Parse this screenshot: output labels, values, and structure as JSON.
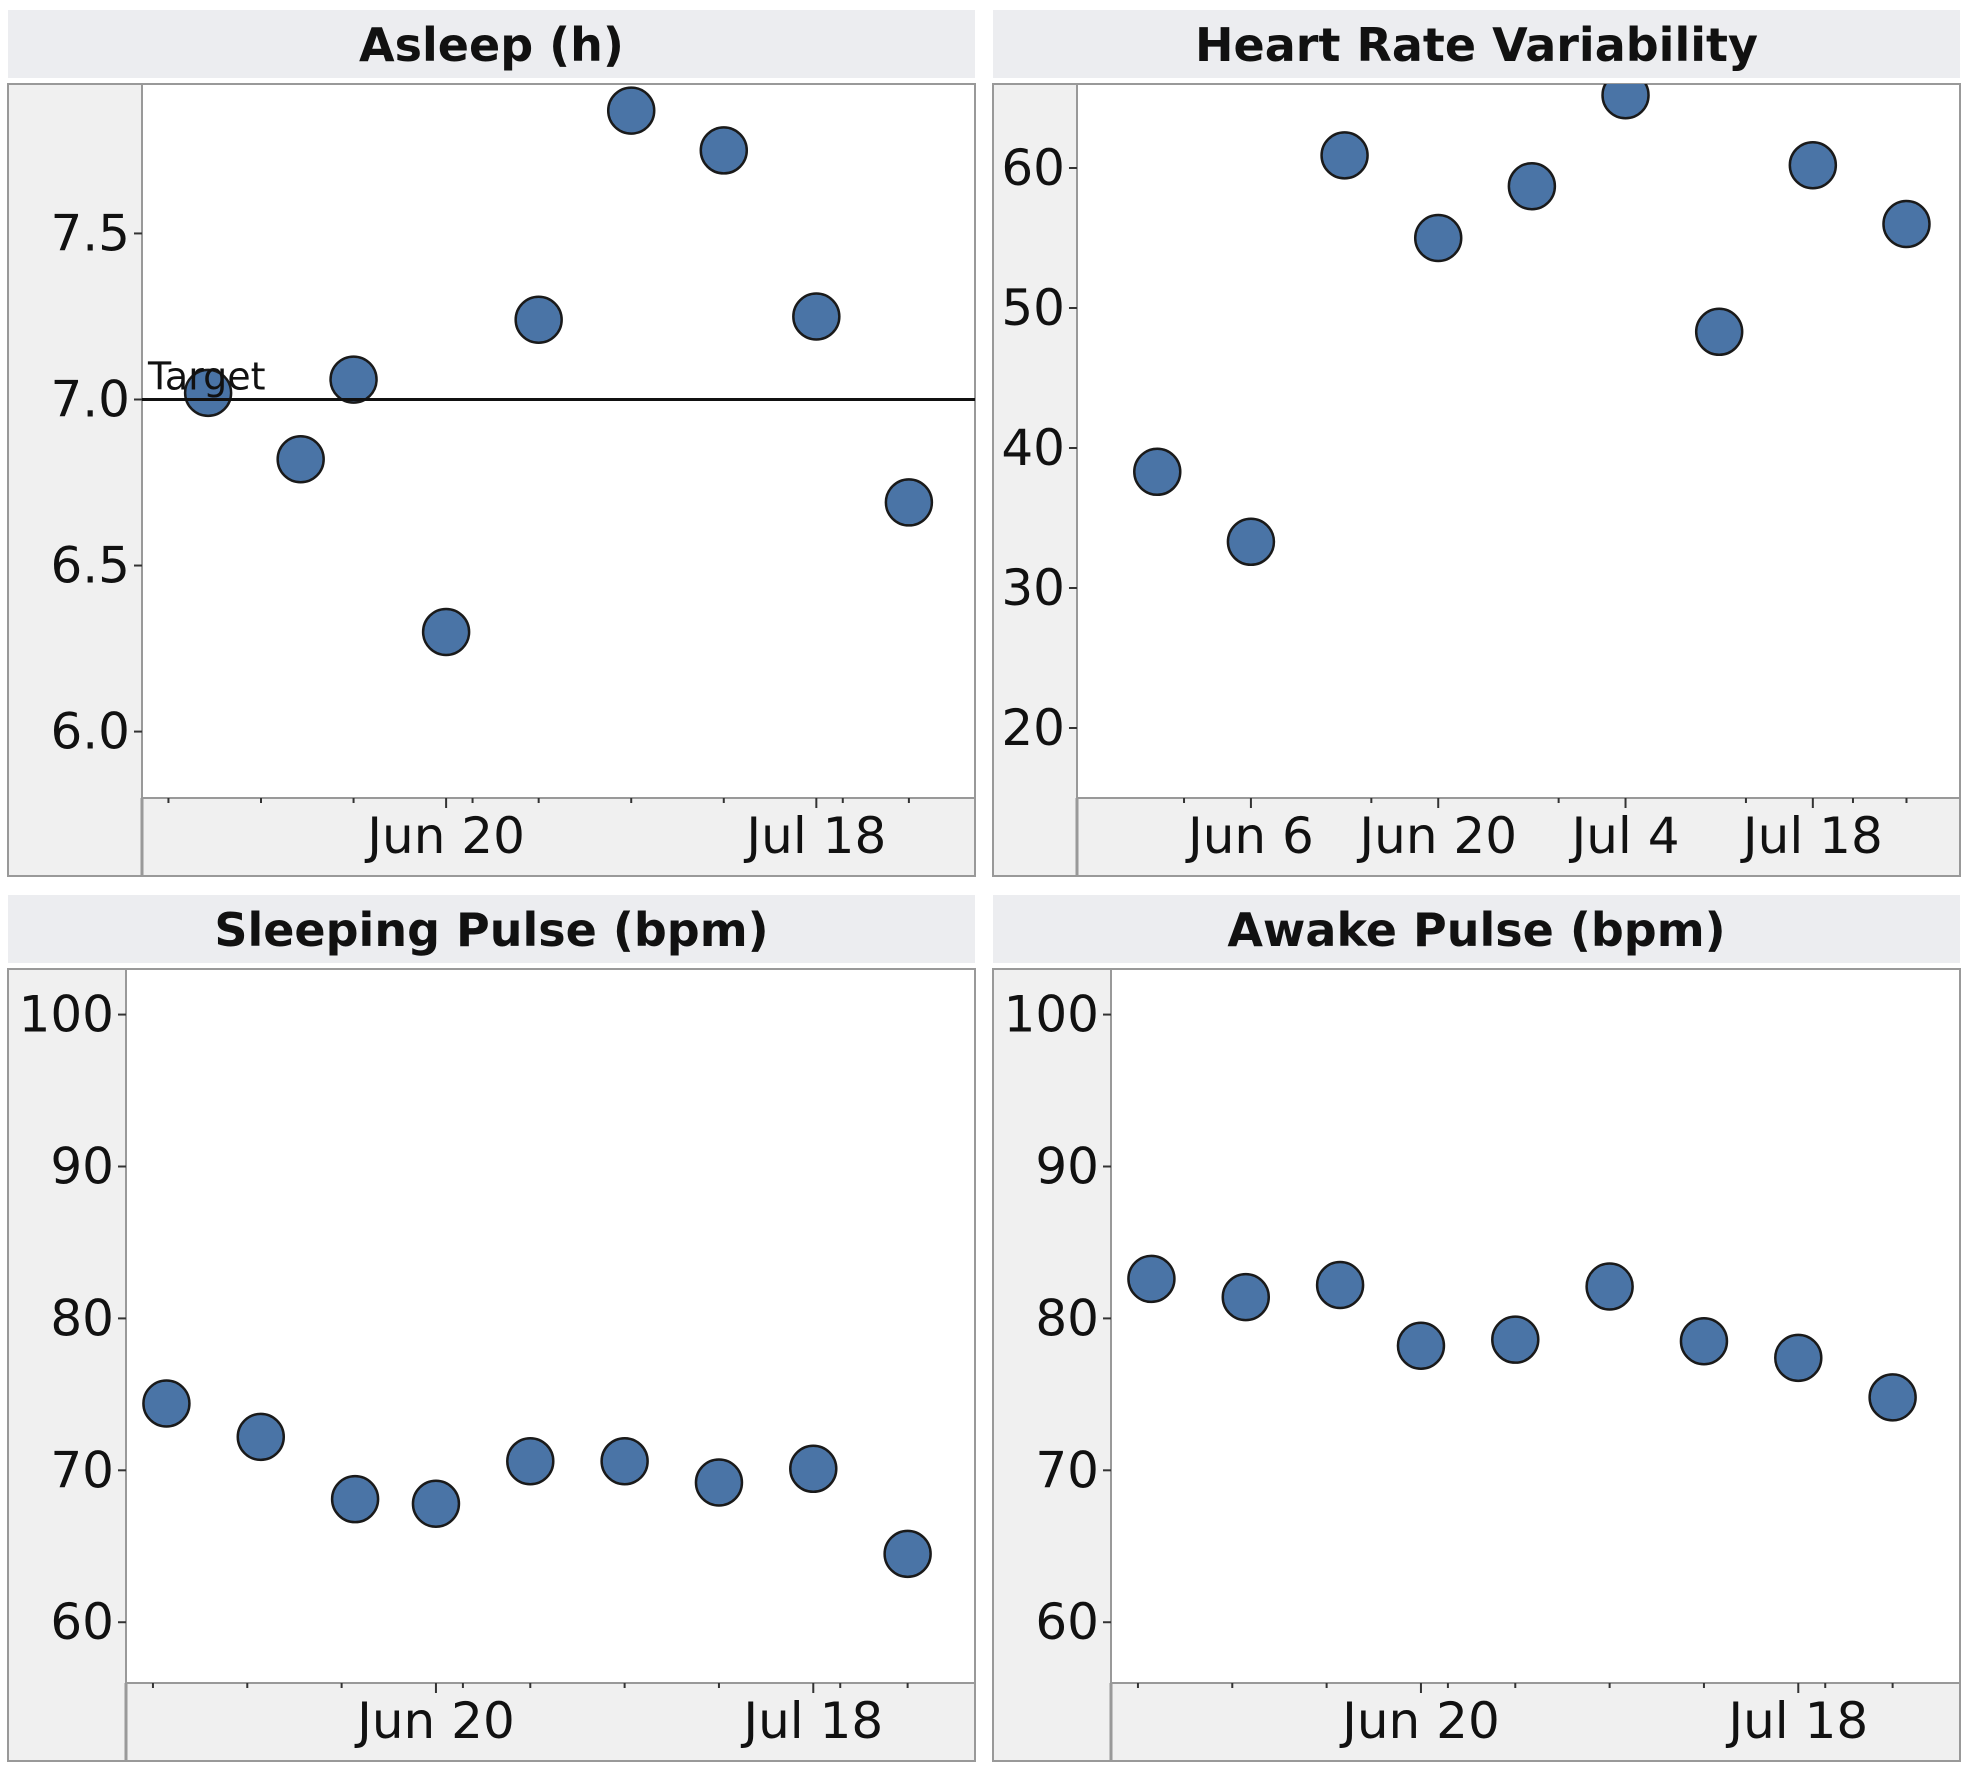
{
  "colors": {
    "marker_fill": "#4a74a6",
    "marker_stroke": "#1a1a1a",
    "header_bg": "#ecedf0",
    "axis_area_bg": "#f0f0f0",
    "plot_bg": "#ffffff",
    "frame": "#999999",
    "reference_line": "#111111"
  },
  "chart_data": [
    {
      "type": "scatter",
      "title": "Asleep (h)",
      "xlabel": "",
      "ylabel": "",
      "x_axis": {
        "kind": "date",
        "range": [
          "2025-05-28",
          "2025-07-30"
        ],
        "tick_labels": [
          {
            "label": "Jun 20",
            "date": "2025-06-20"
          },
          {
            "label": "Jul 18",
            "date": "2025-07-18"
          }
        ],
        "minor_ticks": [
          "2025-05-30",
          "2025-06-06",
          "2025-06-13",
          "2025-06-22",
          "2025-06-27",
          "2025-07-04",
          "2025-07-11",
          "2025-07-20",
          "2025-07-25"
        ]
      },
      "y_axis": {
        "range": [
          5.8,
          7.95
        ],
        "ticks": [
          6.0,
          6.5,
          7.0,
          7.5
        ],
        "tick_labels": [
          "6.0",
          "6.5",
          "7.0",
          "7.5"
        ]
      },
      "grid": false,
      "reference_line": {
        "value": 7.0,
        "label": "Target"
      },
      "points": [
        {
          "x": "2025-06-02",
          "y": 7.02
        },
        {
          "x": "2025-06-09",
          "y": 6.82
        },
        {
          "x": "2025-06-13",
          "y": 7.06
        },
        {
          "x": "2025-06-20",
          "y": 6.3
        },
        {
          "x": "2025-06-27",
          "y": 7.24
        },
        {
          "x": "2025-07-04",
          "y": 7.87
        },
        {
          "x": "2025-07-11",
          "y": 7.75
        },
        {
          "x": "2025-07-18",
          "y": 7.25
        },
        {
          "x": "2025-07-25",
          "y": 6.69
        }
      ]
    },
    {
      "type": "scatter",
      "title": "Heart Rate Variability",
      "xlabel": "",
      "ylabel": "",
      "x_axis": {
        "kind": "date",
        "range": [
          "2025-05-24",
          "2025-07-29"
        ],
        "tick_labels": [
          {
            "label": "Jun 6",
            "date": "2025-06-06"
          },
          {
            "label": "Jun 20",
            "date": "2025-06-20"
          },
          {
            "label": "Jul 4",
            "date": "2025-07-04"
          },
          {
            "label": "Jul 18",
            "date": "2025-07-18"
          }
        ],
        "minor_ticks": [
          "2025-06-01",
          "2025-06-15",
          "2025-06-29",
          "2025-07-13",
          "2025-07-21",
          "2025-07-25"
        ]
      },
      "y_axis": {
        "range": [
          15,
          66
        ],
        "ticks": [
          20,
          30,
          40,
          50,
          60
        ],
        "tick_labels": [
          "20",
          "30",
          "40",
          "50",
          "60"
        ]
      },
      "grid": false,
      "points": [
        {
          "x": "2025-05-30",
          "y": 38.3
        },
        {
          "x": "2025-06-06",
          "y": 33.3
        },
        {
          "x": "2025-06-13",
          "y": 60.9
        },
        {
          "x": "2025-06-20",
          "y": 55.0
        },
        {
          "x": "2025-06-27",
          "y": 58.7
        },
        {
          "x": "2025-07-04",
          "y": 65.2
        },
        {
          "x": "2025-07-11",
          "y": 48.3
        },
        {
          "x": "2025-07-18",
          "y": 60.2
        },
        {
          "x": "2025-07-25",
          "y": 56.0
        }
      ]
    },
    {
      "type": "scatter",
      "title": "Sleeping Pulse (bpm)",
      "xlabel": "",
      "ylabel": "",
      "x_axis": {
        "kind": "date",
        "range": [
          "2025-05-28",
          "2025-07-30"
        ],
        "tick_labels": [
          {
            "label": "Jun 20",
            "date": "2025-06-20"
          },
          {
            "label": "Jul 18",
            "date": "2025-07-18"
          }
        ],
        "minor_ticks": [
          "2025-05-30",
          "2025-06-06",
          "2025-06-13",
          "2025-06-22",
          "2025-06-27",
          "2025-07-04",
          "2025-07-11",
          "2025-07-20",
          "2025-07-25"
        ]
      },
      "y_axis": {
        "range": [
          56,
          103
        ],
        "ticks": [
          60,
          70,
          80,
          90,
          100
        ],
        "tick_labels": [
          "60",
          "70",
          "80",
          "90",
          "100"
        ]
      },
      "grid": false,
      "points": [
        {
          "x": "2025-05-31",
          "y": 74.4
        },
        {
          "x": "2025-06-07",
          "y": 72.2
        },
        {
          "x": "2025-06-14",
          "y": 68.1
        },
        {
          "x": "2025-06-20",
          "y": 67.8
        },
        {
          "x": "2025-06-27",
          "y": 70.6
        },
        {
          "x": "2025-07-04",
          "y": 70.6
        },
        {
          "x": "2025-07-11",
          "y": 69.2
        },
        {
          "x": "2025-07-18",
          "y": 70.1
        },
        {
          "x": "2025-07-25",
          "y": 64.5
        }
      ]
    },
    {
      "type": "scatter",
      "title": "Awake Pulse (bpm)",
      "xlabel": "",
      "ylabel": "",
      "x_axis": {
        "kind": "date",
        "range": [
          "2025-05-28",
          "2025-07-30"
        ],
        "tick_labels": [
          {
            "label": "Jun 20",
            "date": "2025-06-20"
          },
          {
            "label": "Jul 18",
            "date": "2025-07-18"
          }
        ],
        "minor_ticks": [
          "2025-05-30",
          "2025-06-06",
          "2025-06-13",
          "2025-06-22",
          "2025-06-27",
          "2025-07-04",
          "2025-07-11",
          "2025-07-20",
          "2025-07-25"
        ]
      },
      "y_axis": {
        "range": [
          56,
          103
        ],
        "ticks": [
          60,
          70,
          80,
          90,
          100
        ],
        "tick_labels": [
          "60",
          "70",
          "80",
          "90",
          "100"
        ]
      },
      "grid": false,
      "points": [
        {
          "x": "2025-05-31",
          "y": 82.6
        },
        {
          "x": "2025-06-07",
          "y": 81.4
        },
        {
          "x": "2025-06-14",
          "y": 82.2
        },
        {
          "x": "2025-06-20",
          "y": 78.2
        },
        {
          "x": "2025-06-27",
          "y": 78.6
        },
        {
          "x": "2025-07-04",
          "y": 82.1
        },
        {
          "x": "2025-07-11",
          "y": 78.5
        },
        {
          "x": "2025-07-18",
          "y": 77.4
        },
        {
          "x": "2025-07-25",
          "y": 74.8
        }
      ]
    }
  ]
}
